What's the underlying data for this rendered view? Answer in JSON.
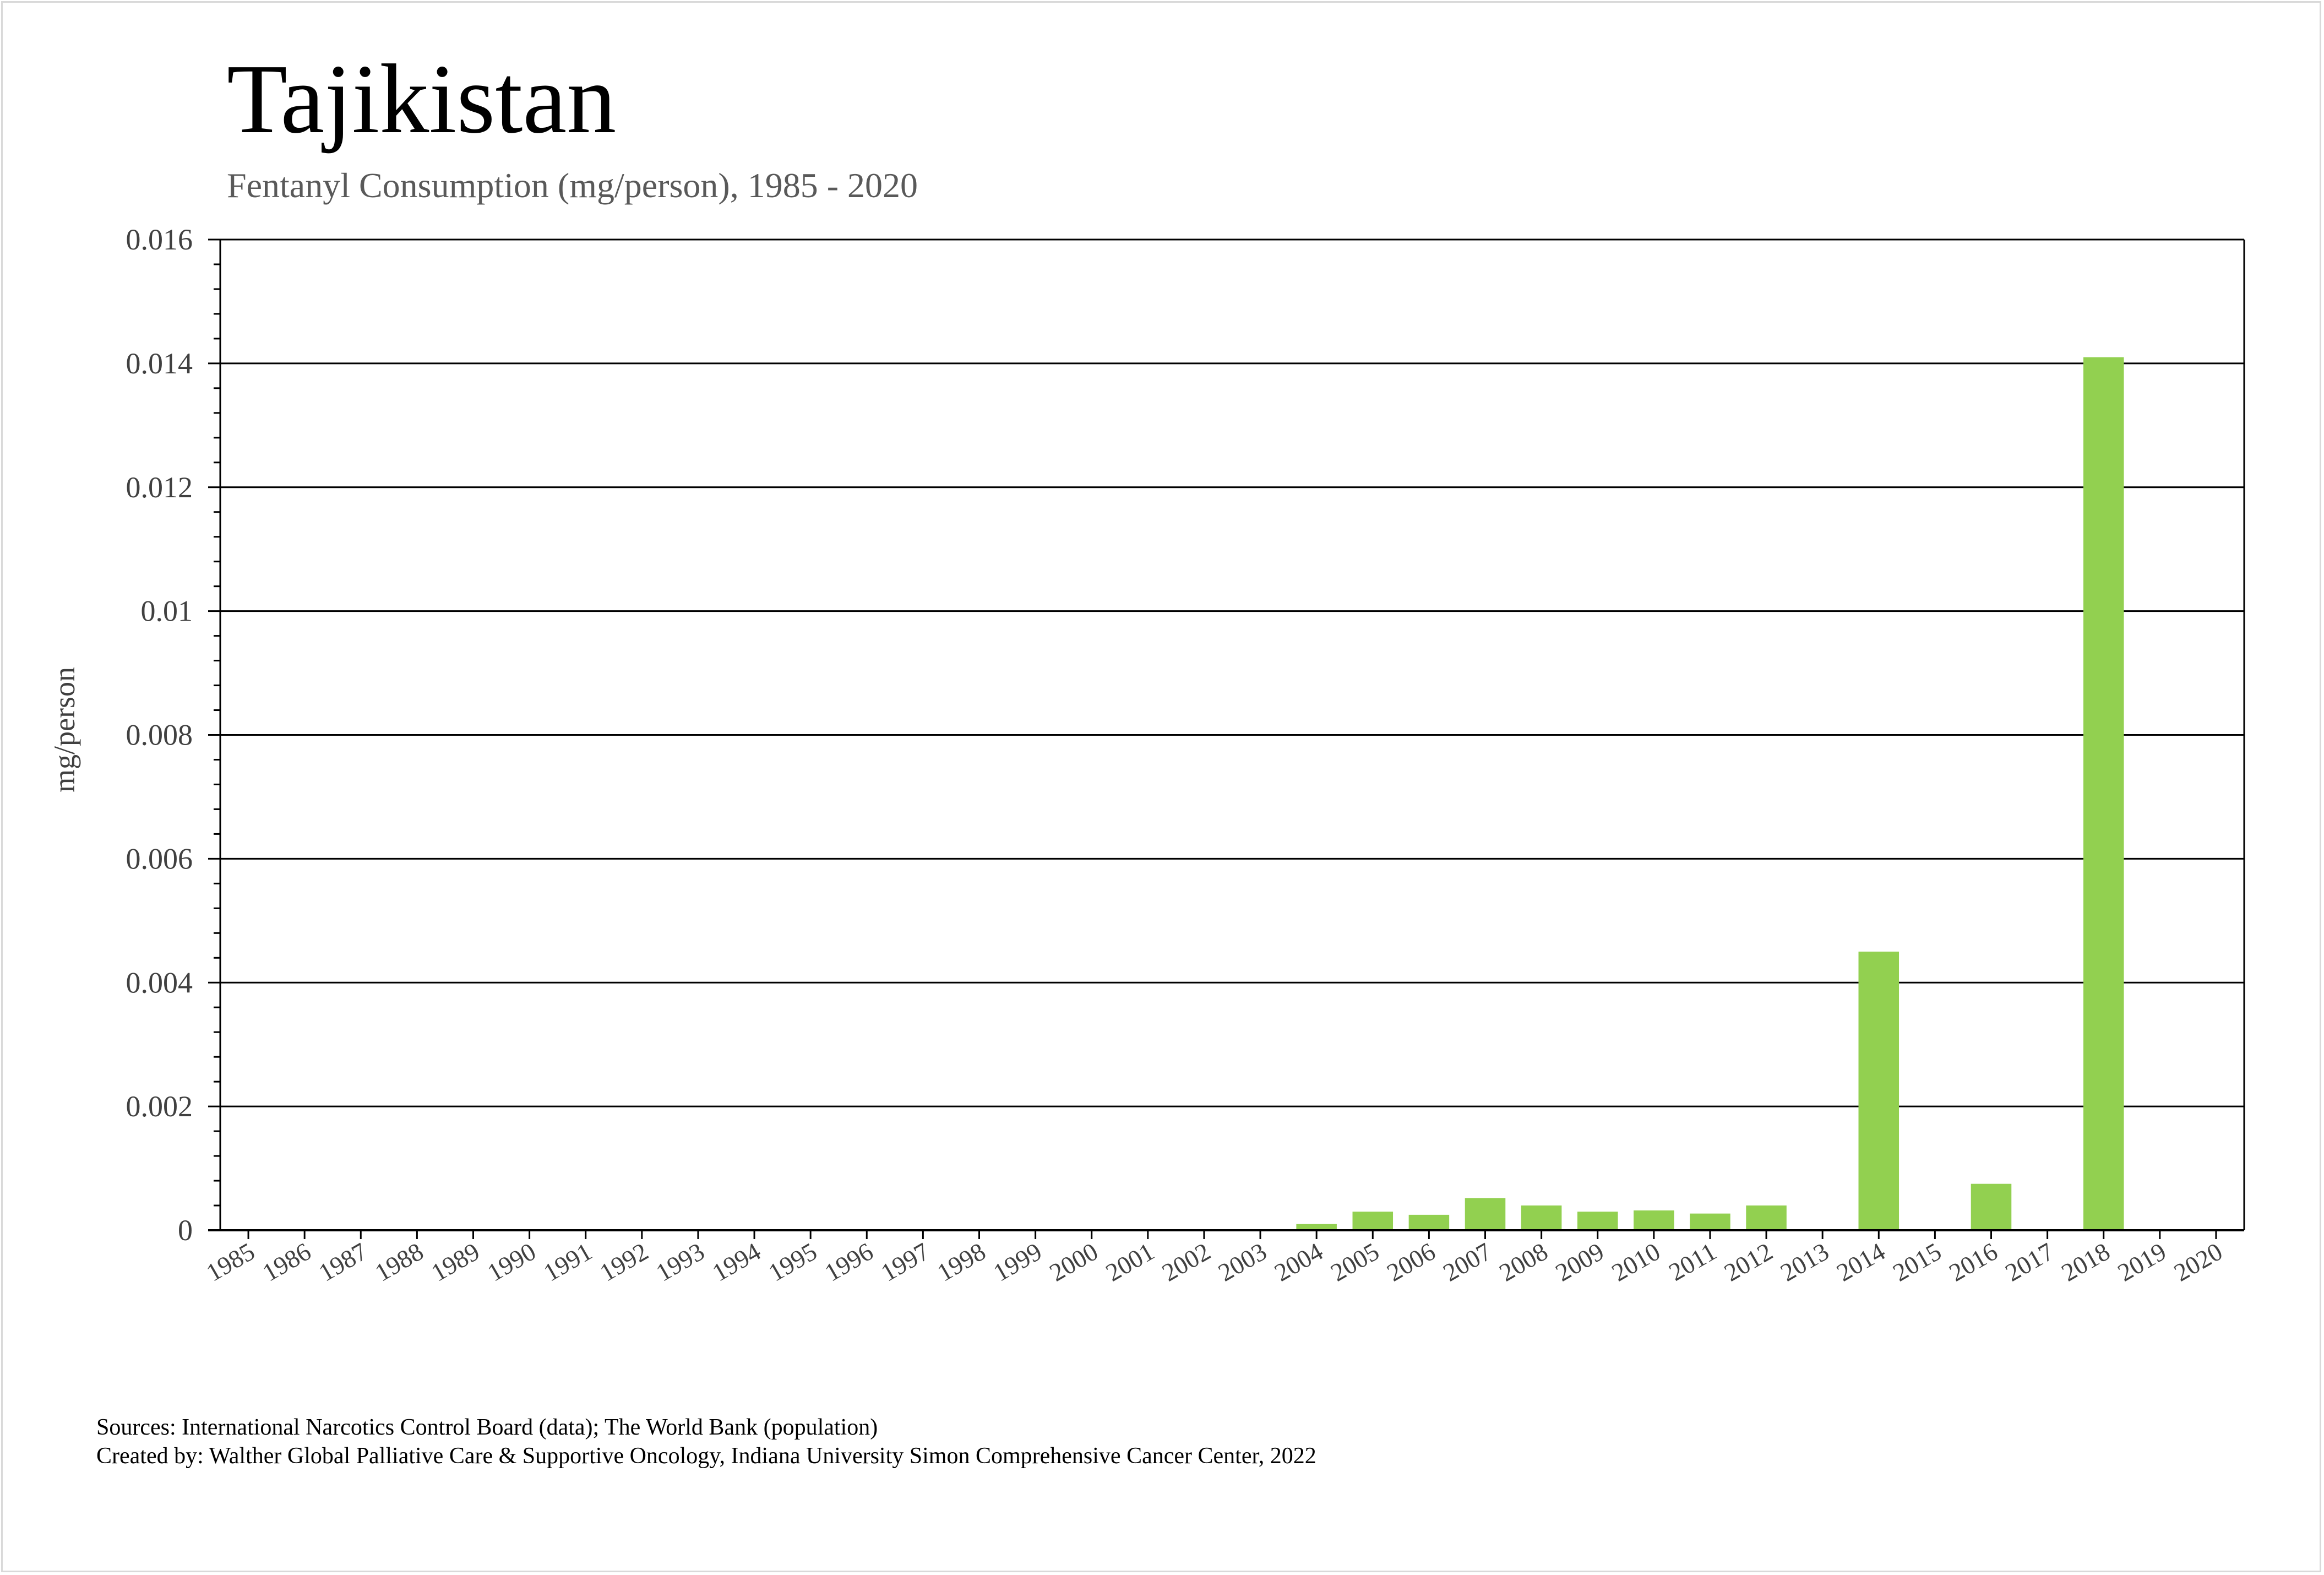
{
  "chart_data": {
    "type": "bar",
    "title": "Tajikistan",
    "subtitle": "Fentanyl Consumption (mg/person), 1985 - 2020",
    "ylabel": "mg/person",
    "xlabel": "",
    "ylim": [
      0,
      0.016
    ],
    "yticks": [
      "0",
      "0.002",
      "0.004",
      "0.006",
      "0.008",
      "0.01",
      "0.012",
      "0.014",
      "0.016"
    ],
    "categories": [
      "1985",
      "1986",
      "1987",
      "1988",
      "1989",
      "1990",
      "1991",
      "1992",
      "1993",
      "1994",
      "1995",
      "1996",
      "1997",
      "1998",
      "1999",
      "2000",
      "2001",
      "2002",
      "2003",
      "2004",
      "2005",
      "2006",
      "2007",
      "2008",
      "2009",
      "2010",
      "2011",
      "2012",
      "2013",
      "2014",
      "2015",
      "2016",
      "2017",
      "2018",
      "2019",
      "2020"
    ],
    "values": [
      0,
      0,
      0,
      0,
      0,
      0,
      0,
      0,
      0,
      0,
      0,
      0,
      0,
      0,
      0,
      0,
      0,
      0,
      0,
      0.0001,
      0.0003,
      0.00025,
      0.00052,
      0.0004,
      0.0003,
      0.00032,
      0.00027,
      0.0004,
      0,
      0.0045,
      0,
      0.00075,
      0,
      0.0141,
      0,
      0
    ],
    "bar_color": "#92d050",
    "grid": true,
    "legend": "none"
  },
  "footer": {
    "sources": "Sources: International Narcotics Control Board (data); The World Bank (population)",
    "created_by": "Created by: Walther Global Palliative Care & Supportive Oncology, Indiana University Simon Comprehensive Cancer Center, 2022"
  }
}
